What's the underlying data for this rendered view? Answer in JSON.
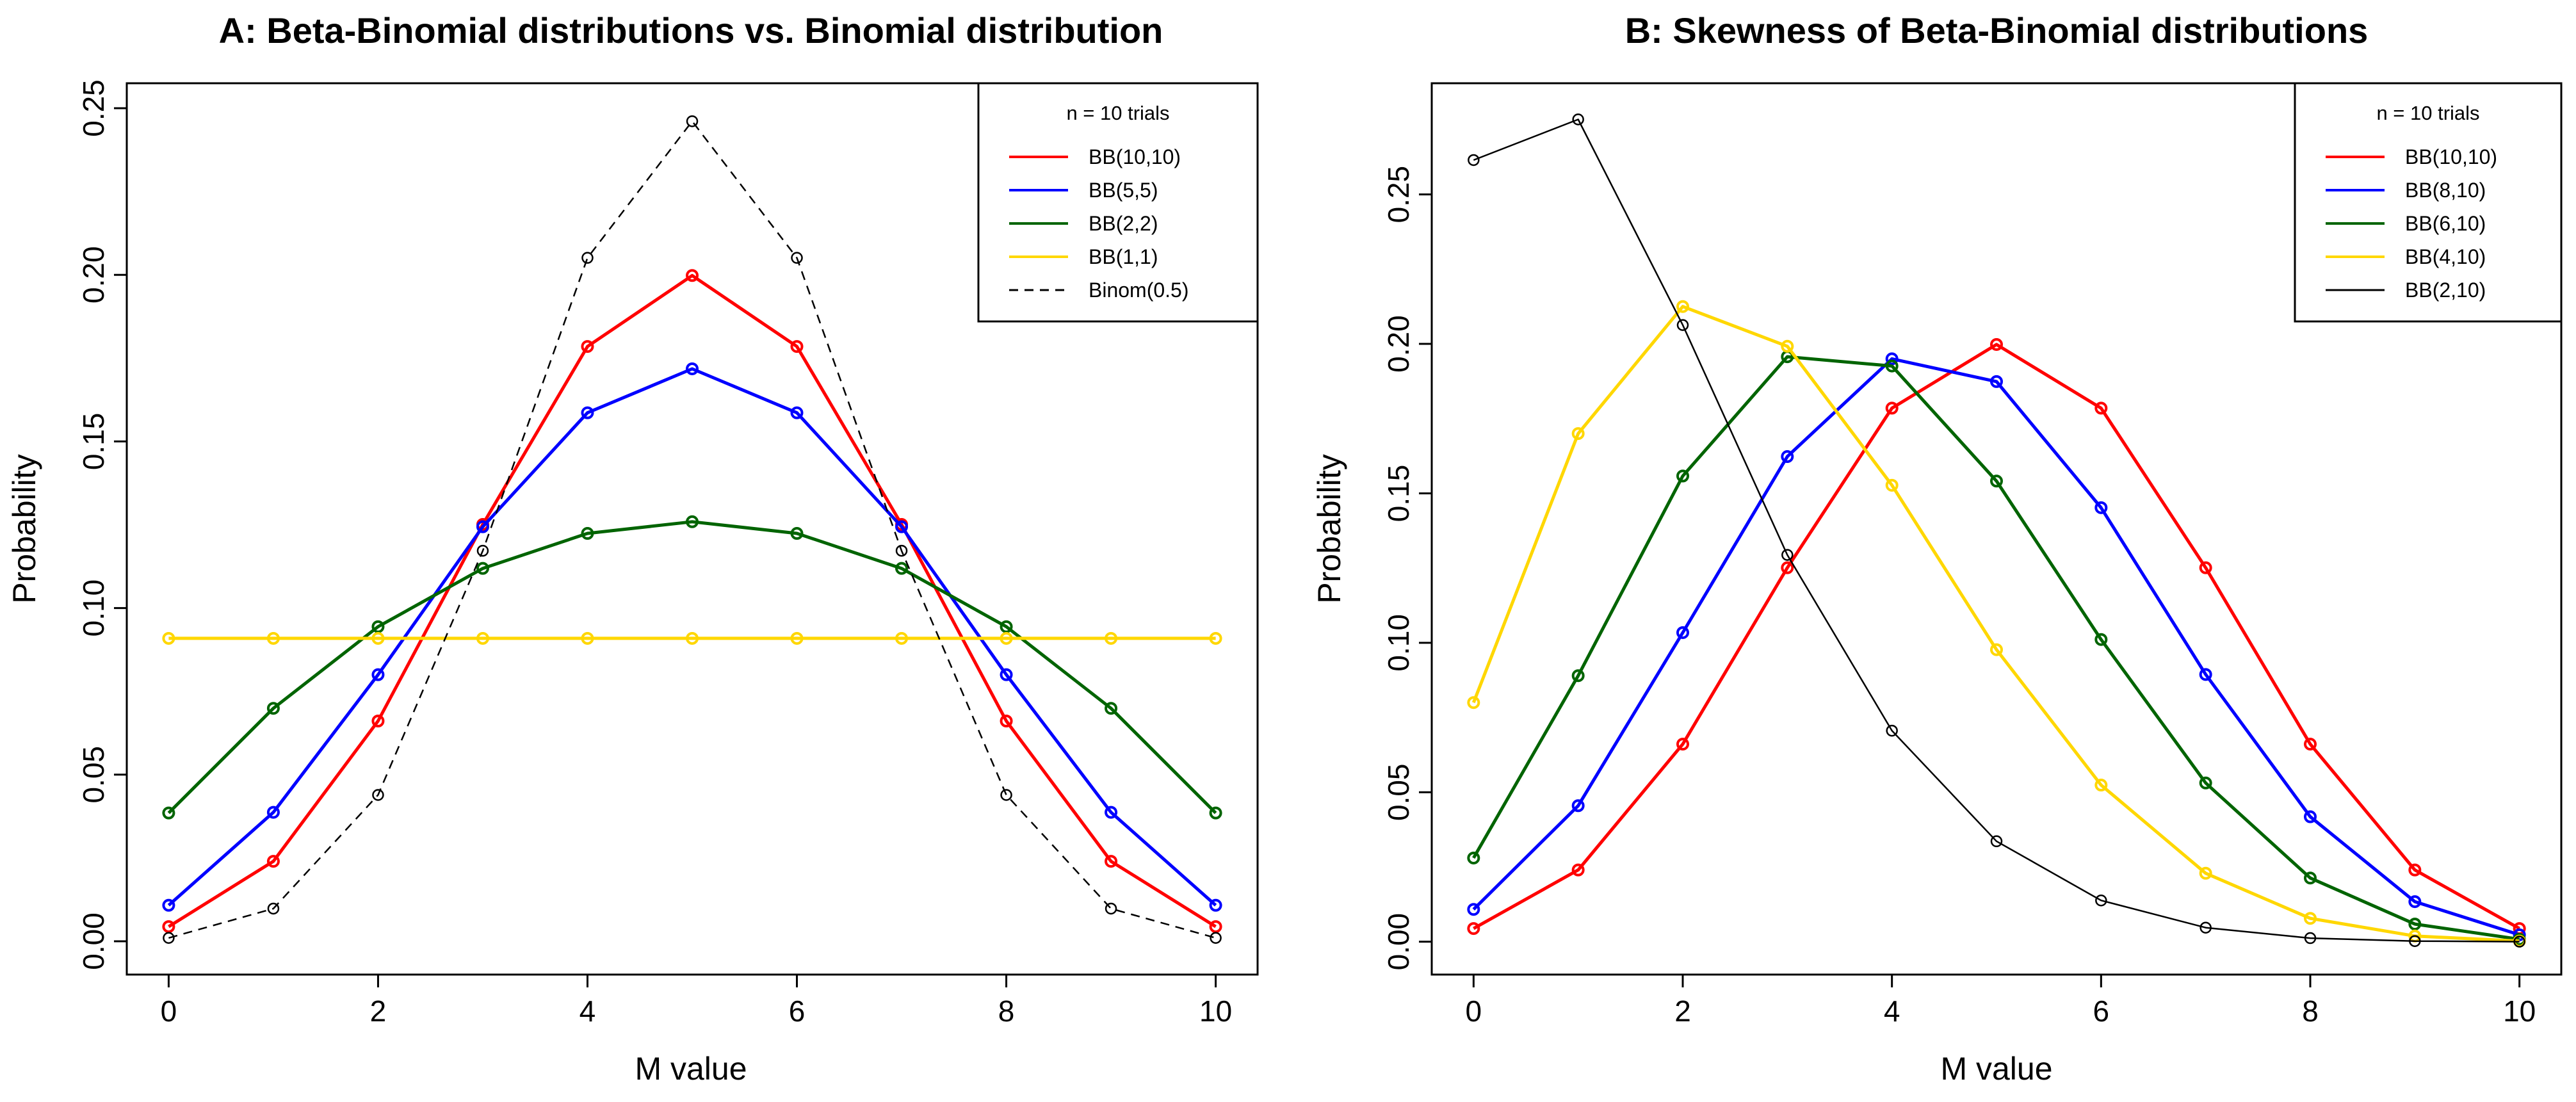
{
  "chart_data": [
    {
      "type": "line",
      "title": "A: Beta-Binomial distributions vs. Binomial distribution",
      "xlabel": "M value",
      "ylabel": "Probability",
      "xlim": [
        -0.4,
        10.4
      ],
      "ylim": [
        -0.01,
        0.2575
      ],
      "xticks": [
        0,
        2,
        4,
        6,
        8,
        10
      ],
      "xtick_labels": [
        "0",
        "2",
        "4",
        "6",
        "8",
        "10"
      ],
      "yticks": [
        0.0,
        0.05,
        0.1,
        0.15,
        0.2,
        0.25
      ],
      "ytick_labels": [
        "0.00",
        "0.05",
        "0.10",
        "0.15",
        "0.20",
        "0.25"
      ],
      "legend_title": "n = 10 trials",
      "legend_position": "top-right",
      "x": [
        0,
        1,
        2,
        3,
        4,
        5,
        6,
        7,
        8,
        9,
        10
      ],
      "series": [
        {
          "name": "BB(10,10)",
          "color": "#ff0000",
          "dash": false,
          "values": [
            0.0044,
            0.024,
            0.0661,
            0.1251,
            0.1785,
            0.1998,
            0.1785,
            0.1251,
            0.0661,
            0.024,
            0.0044
          ]
        },
        {
          "name": "BB(5,5)",
          "color": "#0000ff",
          "dash": false,
          "values": [
            0.0108,
            0.0387,
            0.08,
            0.1244,
            0.1586,
            0.1718,
            0.1586,
            0.1244,
            0.08,
            0.0387,
            0.0108
          ]
        },
        {
          "name": "BB(2,2)",
          "color": "#006400",
          "dash": false,
          "values": [
            0.0385,
            0.0699,
            0.0944,
            0.1119,
            0.1224,
            0.1259,
            0.1224,
            0.1119,
            0.0944,
            0.0699,
            0.0385
          ]
        },
        {
          "name": "BB(1,1)",
          "color": "#ffd700",
          "dash": false,
          "values": [
            0.0909,
            0.0909,
            0.0909,
            0.0909,
            0.0909,
            0.0909,
            0.0909,
            0.0909,
            0.0909,
            0.0909,
            0.0909
          ]
        },
        {
          "name": "Binom(0.5)",
          "color": "#000000",
          "dash": true,
          "values": [
            0.001,
            0.0098,
            0.0439,
            0.1172,
            0.2051,
            0.2461,
            0.2051,
            0.1172,
            0.0439,
            0.0098,
            0.001
          ]
        }
      ]
    },
    {
      "type": "line",
      "title": "B: Skewness of Beta-Binomial distributions",
      "xlabel": "M value",
      "ylabel": "Probability",
      "xlim": [
        -0.4,
        10.4
      ],
      "ylim": [
        -0.011,
        0.2872
      ],
      "xticks": [
        0,
        2,
        4,
        6,
        8,
        10
      ],
      "xtick_labels": [
        "0",
        "2",
        "4",
        "6",
        "8",
        "10"
      ],
      "yticks": [
        0.0,
        0.05,
        0.1,
        0.15,
        0.2,
        0.25
      ],
      "ytick_labels": [
        "0.00",
        "0.05",
        "0.10",
        "0.15",
        "0.20",
        "0.25"
      ],
      "legend_title": "n = 10 trials",
      "legend_position": "top-right",
      "x": [
        0,
        1,
        2,
        3,
        4,
        5,
        6,
        7,
        8,
        9,
        10
      ],
      "series": [
        {
          "name": "BB(10,10)",
          "color": "#ff0000",
          "dash": false,
          "values": [
            0.0044,
            0.024,
            0.0661,
            0.1251,
            0.1785,
            0.1998,
            0.1785,
            0.1251,
            0.0661,
            0.024,
            0.0044
          ]
        },
        {
          "name": "BB(8,10)",
          "color": "#0000ff",
          "dash": false,
          "values": [
            0.0108,
            0.0455,
            0.1034,
            0.1623,
            0.195,
            0.1874,
            0.1452,
            0.0894,
            0.0418,
            0.0134,
            0.0023
          ]
        },
        {
          "name": "BB(6,10)",
          "color": "#006400",
          "dash": false,
          "values": [
            0.028,
            0.089,
            0.1558,
            0.1957,
            0.1926,
            0.1541,
            0.1011,
            0.0531,
            0.0213,
            0.0059,
            0.0008
          ]
        },
        {
          "name": "BB(4,10)",
          "color": "#ffd700",
          "dash": false,
          "values": [
            0.08,
            0.17,
            0.2125,
            0.1992,
            0.1527,
            0.0977,
            0.0524,
            0.0229,
            0.0078,
            0.0019,
            0.0002
          ]
        },
        {
          "name": "BB(2,10)",
          "color": "#000000",
          "dash": false,
          "values": [
            0.2615,
            0.2751,
            0.2063,
            0.1294,
            0.0706,
            0.0336,
            0.0138,
            0.0047,
            0.0012,
            0.0002,
            2e-05
          ]
        }
      ]
    }
  ]
}
